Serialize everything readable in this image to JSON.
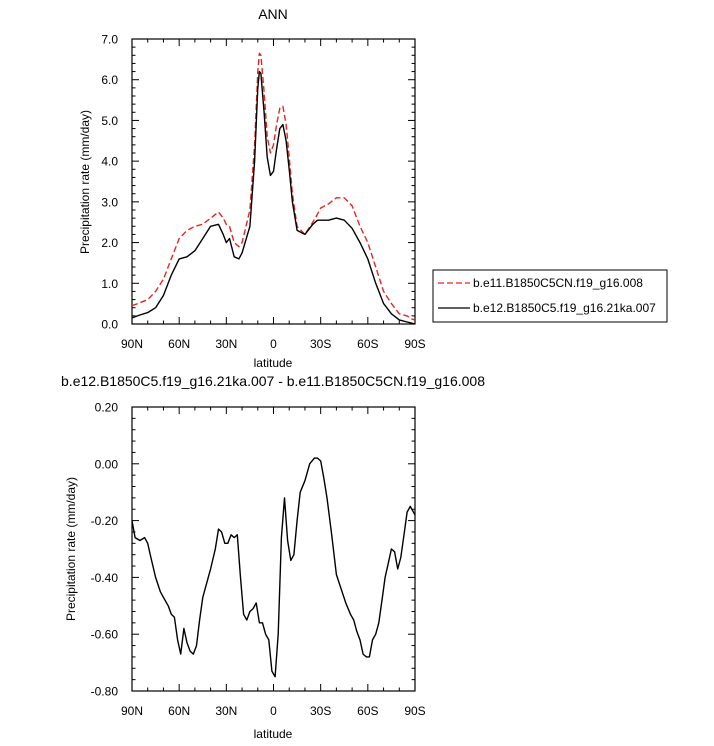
{
  "chart_data": [
    {
      "type": "line",
      "title": "ANN",
      "xlabel": "latitude",
      "ylabel": "Precipitation rate (mm/day)",
      "xlim": [
        90,
        -90
      ],
      "ylim": [
        0,
        7
      ],
      "x_ticks": [
        90,
        60,
        30,
        0,
        -30,
        -60,
        -90
      ],
      "x_tick_labels": [
        "90N",
        "60N",
        "30N",
        "0",
        "30S",
        "60S",
        "90S"
      ],
      "y_ticks": [
        0,
        1,
        2,
        3,
        4,
        5,
        6,
        7
      ],
      "y_tick_labels": [
        "0.0",
        "1.0",
        "2.0",
        "3.0",
        "4.0",
        "5.0",
        "6.0",
        "7.0"
      ],
      "grid": false,
      "legend_position": "outside-right",
      "series": [
        {
          "name": "b.e11.B1850C5CN.f19_g16.008",
          "color": "#e8251f",
          "dash": "dashed",
          "x": [
            90,
            85,
            80,
            75,
            70,
            65,
            60,
            55,
            50,
            45,
            40,
            35,
            32,
            30,
            28,
            25,
            22,
            20,
            15,
            12,
            10,
            9,
            8,
            6,
            4,
            2,
            0,
            -2,
            -4,
            -6,
            -8,
            -10,
            -12,
            -15,
            -20,
            -25,
            -28,
            -30,
            -35,
            -40,
            -45,
            -50,
            -55,
            -60,
            -65,
            -70,
            -75,
            -80,
            -85,
            -88,
            -90
          ],
          "values": [
            0.45,
            0.52,
            0.6,
            0.8,
            1.1,
            1.6,
            2.1,
            2.3,
            2.4,
            2.45,
            2.6,
            2.75,
            2.6,
            2.45,
            2.4,
            2.0,
            1.9,
            2.0,
            2.8,
            4.4,
            6.2,
            6.65,
            6.6,
            5.7,
            4.6,
            4.2,
            4.4,
            4.9,
            5.3,
            5.35,
            4.9,
            4.1,
            3.2,
            2.4,
            2.2,
            2.5,
            2.7,
            2.85,
            2.95,
            3.1,
            3.1,
            2.9,
            2.4,
            2.0,
            1.4,
            0.8,
            0.5,
            0.25,
            0.2,
            0.12,
            0.1
          ]
        },
        {
          "name": "b.e12.B1850C5.f19_g16.21ka.007",
          "color": "#000000",
          "dash": "solid",
          "x": [
            90,
            85,
            80,
            75,
            70,
            65,
            60,
            55,
            50,
            45,
            40,
            35,
            32,
            30,
            28,
            25,
            22,
            20,
            15,
            12,
            10,
            9,
            8,
            6,
            4,
            2,
            0,
            -2,
            -4,
            -6,
            -8,
            -10,
            -12,
            -15,
            -20,
            -25,
            -28,
            -30,
            -35,
            -40,
            -45,
            -50,
            -55,
            -60,
            -65,
            -70,
            -75,
            -80,
            -85,
            -88,
            -90
          ],
          "values": [
            0.15,
            0.22,
            0.28,
            0.4,
            0.7,
            1.2,
            1.6,
            1.65,
            1.8,
            2.1,
            2.4,
            2.45,
            2.2,
            2.0,
            2.1,
            1.65,
            1.6,
            1.75,
            2.4,
            4.0,
            5.8,
            6.2,
            6.15,
            5.2,
            4.1,
            3.65,
            3.75,
            4.3,
            4.8,
            4.9,
            4.5,
            3.8,
            3.0,
            2.3,
            2.2,
            2.45,
            2.55,
            2.55,
            2.55,
            2.6,
            2.55,
            2.35,
            2.0,
            1.6,
            1.0,
            0.5,
            0.25,
            0.1,
            0.05,
            0.02,
            0.0
          ]
        }
      ]
    },
    {
      "type": "line",
      "title": "b.e12.B1850C5.f19_g16.21ka.007 - b.e11.B1850C5CN.f19_g16.008",
      "xlabel": "latitude",
      "ylabel": "Precipitation rate (mm/day)",
      "xlim": [
        90,
        -90
      ],
      "ylim": [
        -0.8,
        0.2
      ],
      "x_ticks": [
        90,
        60,
        30,
        0,
        -30,
        -60,
        -90
      ],
      "x_tick_labels": [
        "90N",
        "60N",
        "30N",
        "0",
        "30S",
        "60S",
        "90S"
      ],
      "y_ticks": [
        -0.8,
        -0.6,
        -0.4,
        -0.2,
        0.0,
        0.2
      ],
      "y_tick_labels": [
        "-0.80",
        "-0.60",
        "-0.40",
        "-0.20",
        "0.00",
        "0.20"
      ],
      "grid": false,
      "series": [
        {
          "color": "#000000",
          "dash": "solid",
          "x": [
            90,
            88,
            85,
            82,
            80,
            78,
            75,
            72,
            70,
            67,
            65,
            63,
            61,
            59,
            57,
            55,
            53,
            51,
            49,
            47,
            45,
            42,
            40,
            37,
            35,
            33,
            31,
            29,
            27,
            25,
            23,
            21,
            19,
            17,
            15,
            13,
            11,
            9,
            7,
            5,
            3,
            1,
            -1,
            -3,
            -5,
            -7,
            -9,
            -11,
            -13,
            -15,
            -17,
            -20,
            -23,
            -26,
            -28,
            -30,
            -32,
            -34,
            -37,
            -40,
            -43,
            -46,
            -49,
            -51,
            -53,
            -55,
            -57,
            -59,
            -61,
            -63,
            -65,
            -67,
            -69,
            -71,
            -73,
            -75,
            -77,
            -79,
            -81,
            -83,
            -85,
            -87,
            -89,
            -90
          ],
          "values": [
            -0.2,
            -0.26,
            -0.27,
            -0.26,
            -0.28,
            -0.33,
            -0.4,
            -0.45,
            -0.47,
            -0.5,
            -0.53,
            -0.54,
            -0.62,
            -0.67,
            -0.58,
            -0.63,
            -0.66,
            -0.67,
            -0.64,
            -0.55,
            -0.47,
            -0.41,
            -0.37,
            -0.3,
            -0.23,
            -0.24,
            -0.28,
            -0.28,
            -0.25,
            -0.26,
            -0.25,
            -0.4,
            -0.53,
            -0.55,
            -0.52,
            -0.51,
            -0.49,
            -0.56,
            -0.56,
            -0.6,
            -0.62,
            -0.73,
            -0.75,
            -0.6,
            -0.26,
            -0.12,
            -0.27,
            -0.34,
            -0.32,
            -0.2,
            -0.1,
            -0.06,
            0.0,
            0.02,
            0.02,
            0.01,
            -0.05,
            -0.12,
            -0.25,
            -0.39,
            -0.44,
            -0.49,
            -0.53,
            -0.55,
            -0.59,
            -0.62,
            -0.67,
            -0.68,
            -0.68,
            -0.62,
            -0.6,
            -0.56,
            -0.48,
            -0.4,
            -0.35,
            -0.3,
            -0.31,
            -0.37,
            -0.33,
            -0.25,
            -0.17,
            -0.15,
            -0.17,
            -0.18
          ]
        }
      ]
    }
  ]
}
